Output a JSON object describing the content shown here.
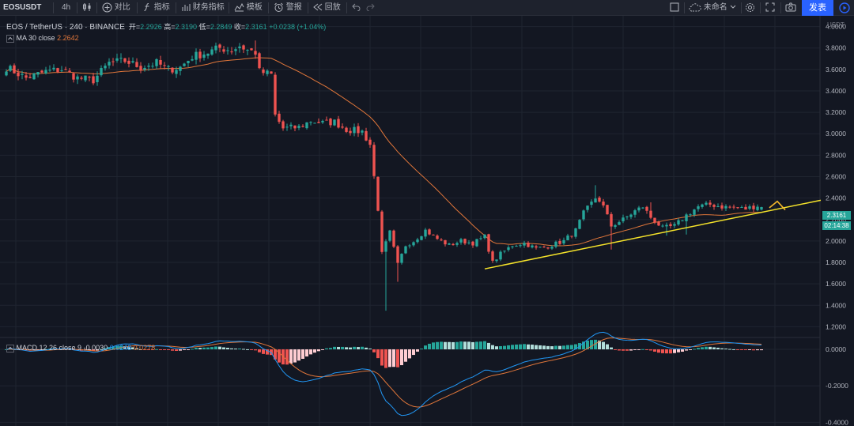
{
  "toolbar": {
    "symbol": "EOSUSDT",
    "interval": "4h",
    "compare": "对比",
    "indicators": "指标",
    "financials": "财务指标",
    "templates": "模板",
    "alerts": "警报",
    "replay": "回放",
    "layout_name": "未命名",
    "publish": "发表"
  },
  "legend": {
    "title": "EOS / TetherUS · 240 · BINANCE",
    "open_label": "开",
    "open": "2.2926",
    "high_label": "高",
    "high": "2.3190",
    "low_label": "低",
    "low": "2.2849",
    "close_label": "收",
    "close": "2.3161",
    "change": "+0.0238 (+1.04%)",
    "ma_label": "MA 30 close",
    "ma_value": "2.2642"
  },
  "macd_legend": {
    "label": "MACD 12 26 close 9",
    "hist": "-0.0030",
    "macd": "0.0248",
    "signal": "0.0278"
  },
  "axis": {
    "currency": "USDT",
    "last_price": "2.3161",
    "countdown": "02:14:38"
  },
  "colors": {
    "up": "#26a69a",
    "down": "#ef5350",
    "ma": "#e0763a",
    "trendline": "#f5e32a",
    "macd": "#2196f3",
    "signal": "#e0763a",
    "hist_up_strong": "#26a69a",
    "hist_up_weak": "#b2dfdb",
    "hist_down_strong": "#ef5350",
    "hist_down_weak": "#ffcdd2",
    "bg": "#131722",
    "grid": "#1f2430"
  },
  "chart_data": [
    {
      "type": "candlestick",
      "title": "EOS / TetherUS · 240 · BINANCE",
      "ylim": [
        1.1,
        4.1
      ],
      "y_ticks": [
        "1.2000",
        "1.4000",
        "1.6000",
        "1.8000",
        "2.0000",
        "2.2000",
        "2.4000",
        "2.6000",
        "2.8000",
        "3.0000",
        "3.2000",
        "3.4000",
        "3.6000",
        "3.8000",
        "4.0000"
      ],
      "anchors": [
        [
          0,
          3.62
        ],
        [
          5,
          3.52
        ],
        [
          10,
          3.58
        ],
        [
          14,
          3.6
        ],
        [
          18,
          3.52
        ],
        [
          22,
          3.5
        ],
        [
          26,
          3.66
        ],
        [
          30,
          3.68
        ],
        [
          34,
          3.62
        ],
        [
          38,
          3.66
        ],
        [
          41,
          3.6
        ],
        [
          44,
          3.62
        ],
        [
          47,
          3.72
        ],
        [
          51,
          3.76
        ],
        [
          54,
          3.8
        ],
        [
          57,
          3.78
        ],
        [
          59,
          3.82
        ],
        [
          61,
          3.78
        ],
        [
          63,
          3.76
        ],
        [
          64,
          3.58
        ],
        [
          67,
          3.55
        ],
        [
          68,
          3.17
        ],
        [
          70,
          3.05
        ],
        [
          74,
          3.06
        ],
        [
          77,
          3.12
        ],
        [
          80,
          3.1
        ],
        [
          83,
          3.11
        ],
        [
          86,
          3.04
        ],
        [
          90,
          3.02
        ],
        [
          92,
          2.9
        ],
        [
          94,
          2.3
        ],
        [
          95,
          1.88
        ],
        [
          97,
          2.08
        ],
        [
          99,
          1.78
        ],
        [
          101,
          1.96
        ],
        [
          103,
          2.0
        ],
        [
          106,
          2.1
        ],
        [
          109,
          2.02
        ],
        [
          112,
          1.96
        ],
        [
          115,
          2.0
        ],
        [
          118,
          1.98
        ],
        [
          121,
          2.04
        ],
        [
          123,
          1.8
        ],
        [
          125,
          1.88
        ],
        [
          128,
          1.96
        ],
        [
          131,
          1.98
        ],
        [
          134,
          1.93
        ],
        [
          137,
          1.95
        ],
        [
          141,
          2.0
        ],
        [
          144,
          2.1
        ],
        [
          146,
          2.26
        ],
        [
          149,
          2.4
        ],
        [
          150,
          2.38
        ],
        [
          151,
          2.32
        ],
        [
          153,
          2.14
        ],
        [
          156,
          2.2
        ],
        [
          159,
          2.28
        ],
        [
          161,
          2.32
        ],
        [
          163,
          2.22
        ],
        [
          166,
          2.12
        ],
        [
          169,
          2.14
        ],
        [
          172,
          2.24
        ],
        [
          175,
          2.32
        ],
        [
          178,
          2.34
        ],
        [
          181,
          2.32
        ],
        [
          184,
          2.31
        ],
        [
          187,
          2.3
        ],
        [
          190,
          2.33
        ],
        [
          191,
          2.3161
        ]
      ],
      "wicks": [
        [
          63,
          3.87
        ],
        [
          96,
          1.35
        ],
        [
          99,
          1.62
        ],
        [
          123,
          1.85
        ],
        [
          149,
          2.52
        ],
        [
          153,
          1.92
        ],
        [
          163,
          2.36
        ],
        [
          167,
          2.05
        ],
        [
          172,
          2.06
        ]
      ],
      "last": {
        "open": 2.2926,
        "high": 2.319,
        "low": 2.2849,
        "close": 2.3161
      },
      "ma_period": 30,
      "trendline": {
        "x1": 121,
        "y1": 1.74,
        "x2": 206,
        "y2": 2.38
      },
      "projection": {
        "x1": 193,
        "y1": 2.31,
        "x2": 195,
        "y2": 2.37,
        "x3": 197,
        "y3": 2.29
      }
    },
    {
      "type": "macd",
      "fast": 12,
      "slow": 26,
      "signal_period": 9,
      "ylim": [
        -0.42,
        0.065
      ],
      "y_ticks": [
        "-0.4000",
        "-0.2000",
        "0.0000"
      ]
    }
  ]
}
